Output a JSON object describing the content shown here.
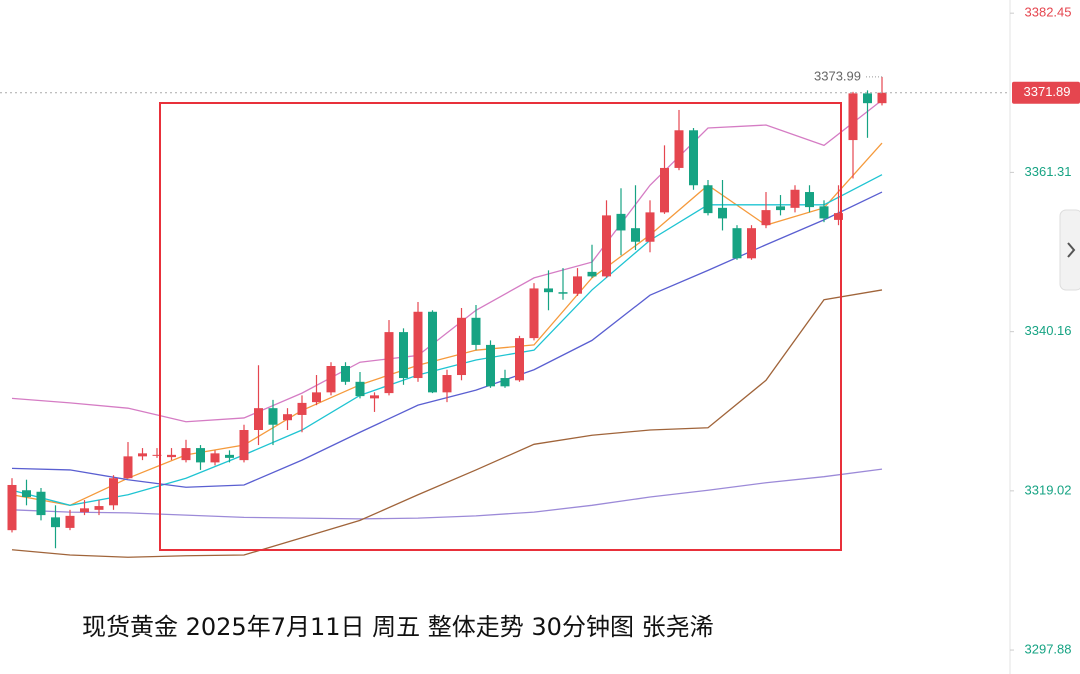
{
  "chart_data": {
    "type": "candlestick",
    "annotation": "现货黄金 2025年7月11日 周五 整体走势 30分钟图 张尧浠",
    "up_color": "#e5464f",
    "down_color": "#16a383",
    "ylim": [
      3294.7,
      3384.2
    ],
    "yticks": [
      3382.45,
      3361.31,
      3340.16,
      3319.02,
      3297.88
    ],
    "open": [
      3313.8,
      3319.1,
      3318.9,
      3315.5,
      3314.1,
      3316.2,
      3316.5,
      3317.1,
      3320.7,
      3323.6,
      3323.8,
      3323.5,
      3323.1,
      3324.7,
      3322.8,
      3323.8,
      3323.1,
      3327.1,
      3330.0,
      3328.4,
      3329.1,
      3330.8,
      3332.1,
      3335.6,
      3333.5,
      3331.3,
      3332.0,
      3340.1,
      3334.0,
      3342.8,
      3332.1,
      3334.4,
      3342.0,
      3338.4,
      3334.0,
      3333.7,
      3339.3,
      3345.9,
      3345.4,
      3345.2,
      3348.1,
      3347.5,
      3355.8,
      3353.9,
      3352.1,
      3356.0,
      3361.9,
      3366.9,
      3359.6,
      3356.6,
      3353.9,
      3349.9,
      3354.3,
      3356.8,
      3356.6,
      3358.7,
      3356.8,
      3355.0,
      3365.6,
      3371.8,
      3370.5
    ],
    "high": [
      3320.7,
      3320.5,
      3319.4,
      3317.1,
      3316.5,
      3317.8,
      3317.8,
      3321.1,
      3325.5,
      3324.7,
      3324.7,
      3324.7,
      3325.8,
      3325.1,
      3324.4,
      3324.4,
      3327.8,
      3335.7,
      3331.1,
      3330.0,
      3331.7,
      3334.4,
      3336.1,
      3336.1,
      3334.8,
      3332.1,
      3341.7,
      3340.6,
      3344.1,
      3343.0,
      3335.1,
      3343.3,
      3343.7,
      3339.0,
      3335.1,
      3339.6,
      3346.6,
      3348.3,
      3348.6,
      3348.6,
      3351.7,
      3357.6,
      3359.2,
      3359.6,
      3357.6,
      3364.9,
      3369.6,
      3367.2,
      3360.3,
      3360.3,
      3354.3,
      3354.3,
      3358.7,
      3358.3,
      3359.6,
      3359.6,
      3357.6,
      3359.6,
      3372.0,
      3372.2,
      3373.99
    ],
    "low": [
      3313.5,
      3317.1,
      3315.1,
      3311.4,
      3313.8,
      3315.8,
      3315.8,
      3316.5,
      3320.7,
      3323.1,
      3323.4,
      3323.1,
      3322.8,
      3321.8,
      3322.4,
      3322.8,
      3322.8,
      3325.1,
      3325.1,
      3327.1,
      3326.8,
      3330.4,
      3331.7,
      3333.1,
      3331.3,
      3329.5,
      3331.7,
      3333.1,
      3333.5,
      3332.0,
      3330.8,
      3333.7,
      3337.7,
      3332.7,
      3332.7,
      3333.5,
      3339.0,
      3343.0,
      3344.4,
      3344.9,
      3347.3,
      3347.3,
      3350.3,
      3351.0,
      3350.7,
      3355.8,
      3361.6,
      3359.0,
      3355.6,
      3353.6,
      3349.7,
      3349.7,
      3353.9,
      3355.6,
      3356.0,
      3356.0,
      3354.7,
      3354.3,
      3360.5,
      3365.9,
      3370.2
    ],
    "close": [
      3319.8,
      3318.2,
      3315.8,
      3314.2,
      3315.7,
      3316.7,
      3317.0,
      3320.7,
      3323.6,
      3324.0,
      3323.8,
      3323.8,
      3324.7,
      3322.8,
      3324.0,
      3323.4,
      3327.1,
      3330.0,
      3327.8,
      3329.2,
      3330.7,
      3332.1,
      3335.6,
      3333.5,
      3331.6,
      3331.7,
      3340.1,
      3334.0,
      3342.8,
      3332.1,
      3334.4,
      3342.0,
      3338.4,
      3332.9,
      3332.9,
      3339.3,
      3345.9,
      3345.4,
      3345.2,
      3347.5,
      3347.5,
      3355.6,
      3353.6,
      3352.1,
      3356.0,
      3361.9,
      3366.9,
      3359.6,
      3355.9,
      3355.2,
      3349.9,
      3353.9,
      3356.3,
      3356.3,
      3359.0,
      3356.7,
      3355.2,
      3355.9,
      3371.8,
      3370.5,
      3371.89
    ],
    "line_x": [
      0,
      4,
      8,
      12,
      16,
      20,
      24,
      28,
      32,
      36,
      40,
      44,
      48,
      52,
      56,
      60
    ],
    "lines": [
      {
        "color": "#d57cc4",
        "values": [
          3331.3,
          3330.7,
          3330.0,
          3328.2,
          3328.7,
          3332.0,
          3336.1,
          3337.0,
          3343.0,
          3347.3,
          3349.4,
          3359.6,
          3367.2,
          3367.6,
          3364.9,
          3370.9
        ]
      },
      {
        "color": "#f59a3c",
        "values": [
          3318.5,
          3317.1,
          3320.7,
          3323.8,
          3325.1,
          3329.7,
          3333.1,
          3335.7,
          3337.7,
          3338.4,
          3347.3,
          3353.0,
          3359.6,
          3354.3,
          3356.6,
          3365.2
        ]
      },
      {
        "color": "#1fc4d2",
        "values": [
          3319.1,
          3317.1,
          3318.5,
          3320.7,
          3323.8,
          3327.1,
          3331.7,
          3334.4,
          3336.4,
          3337.7,
          3345.7,
          3352.3,
          3357.0,
          3357.0,
          3357.0,
          3361.0
        ]
      },
      {
        "color": "#5a5fd1",
        "values": [
          3322.0,
          3321.8,
          3320.5,
          3319.5,
          3319.8,
          3323.1,
          3326.8,
          3330.4,
          3332.4,
          3335.1,
          3339.0,
          3345.0,
          3348.3,
          3351.7,
          3355.0,
          3358.7
        ]
      },
      {
        "color": "#9c8ad8",
        "values": [
          3316.5,
          3316.2,
          3316.1,
          3315.8,
          3315.5,
          3315.4,
          3315.3,
          3315.4,
          3315.7,
          3316.2,
          3317.1,
          3318.2,
          3319.1,
          3320.1,
          3320.9,
          3321.9
        ]
      },
      {
        "color": "#a0643a",
        "values": [
          3311.2,
          3310.5,
          3310.2,
          3310.4,
          3310.5,
          3312.8,
          3315.1,
          3318.5,
          3321.8,
          3325.2,
          3326.4,
          3327.1,
          3327.4,
          3333.7,
          3344.4,
          3345.7
        ]
      }
    ]
  }
}
